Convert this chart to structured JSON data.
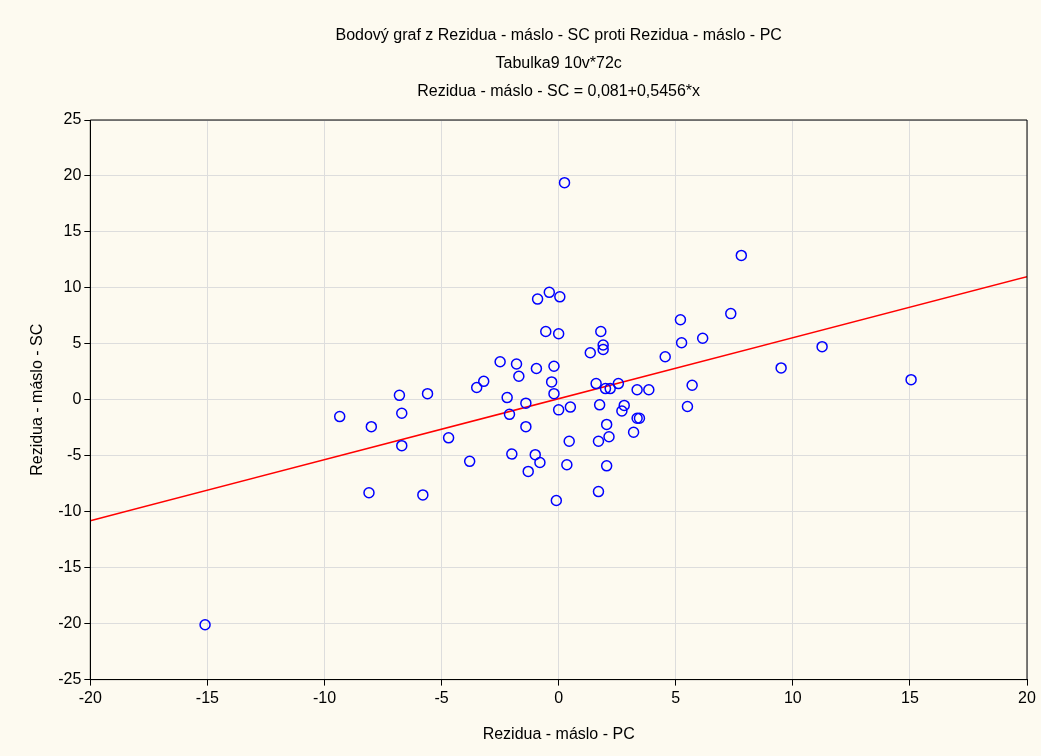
{
  "chart_data": {
    "type": "scatter",
    "title": "Bodový graf z Rezidua - máslo - SC proti Rezidua - máslo - PC",
    "subtitle": "Tabulka9 10v*72c",
    "annotations": [
      "Rezidua - máslo - SC = 0,081+0,5456*x"
    ],
    "xlabel": "Rezidua - máslo - PC",
    "ylabel": "Rezidua - máslo - SC",
    "xlim": [
      -20,
      20
    ],
    "xticks": [
      -20,
      -15,
      -10,
      -5,
      0,
      5,
      10,
      15,
      20
    ],
    "ylim": [
      -25,
      25
    ],
    "yticks": [
      -25,
      -20,
      -15,
      -10,
      -5,
      0,
      5,
      10,
      15,
      20,
      25
    ],
    "grid": true,
    "legend": false,
    "marker": "circle",
    "series": [
      {
        "color": "#0000ff",
        "x": [
          -15.1,
          -9.35,
          -8.0,
          -8.1,
          -6.8,
          -6.7,
          -6.7,
          -5.6,
          -5.8,
          -4.7,
          -3.8,
          -3.5,
          -3.2,
          -2.5,
          -2.2,
          -2.1,
          -2.0,
          -1.8,
          -1.7,
          -1.4,
          -1.4,
          -1.3,
          -1.0,
          -0.95,
          -0.9,
          -0.8,
          -0.55,
          -0.4,
          -0.3,
          -0.2,
          -0.2,
          -0.1,
          0,
          0,
          0.05,
          0.25,
          0.35,
          0.45,
          0.5,
          1.35,
          1.6,
          1.7,
          1.7,
          1.75,
          1.8,
          1.9,
          1.9,
          2.0,
          2.05,
          2.05,
          2.15,
          2.2,
          2.55,
          2.7,
          2.8,
          3.2,
          3.35,
          3.35,
          3.45,
          3.85,
          4.55,
          5.2,
          5.25,
          5.5,
          5.7,
          6.15,
          7.35,
          7.8,
          9.5,
          11.25,
          15.05
        ],
        "values": [
          -20.1,
          -1.5,
          -2.4,
          -8.3,
          0.4,
          -1.2,
          -4.1,
          0.55,
          -8.5,
          -3.4,
          -5.5,
          1.1,
          1.65,
          3.4,
          0.2,
          -1.3,
          -4.85,
          3.2,
          2.1,
          -0.3,
          -2.4,
          -6.4,
          -4.9,
          2.8,
          9.0,
          -5.6,
          6.1,
          9.6,
          1.6,
          3.0,
          0.55,
          -9.0,
          -0.9,
          5.9,
          9.2,
          19.4,
          -5.8,
          -3.7,
          -0.65,
          4.2,
          1.45,
          -3.7,
          -8.2,
          -0.45,
          6.1,
          4.9,
          4.5,
          1.0,
          -2.2,
          -5.9,
          -3.3,
          1.0,
          1.45,
          -1.0,
          -0.5,
          -2.9,
          0.9,
          -1.65,
          -1.65,
          0.9,
          3.85,
          7.15,
          5.1,
          -0.6,
          1.3,
          5.5,
          7.7,
          12.9,
          2.85,
          4.75,
          1.8
        ]
      },
      {
        "type": "line",
        "color": "#ff0000",
        "marker": "none",
        "line_style": "solid",
        "x": [
          -20,
          20
        ],
        "values": [
          -10.8,
          11.0
        ]
      }
    ]
  }
}
